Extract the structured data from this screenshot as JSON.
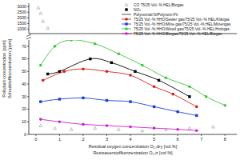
{
  "chart_data": [
    {
      "type": "scatter",
      "xlim": [
        -0.3,
        8.5
      ],
      "ylim": [
        600,
        3300
      ],
      "yticks": [
        1000,
        1500,
        2000,
        2500,
        3000
      ],
      "tick_labels": "y",
      "grid": false,
      "series": [
        {
          "color": "#9a9a9a",
          "marker": "triangle",
          "line_style": "none",
          "x": [
            0.1,
            0.2,
            0.3,
            0.5
          ],
          "values": [
            2900,
            2400,
            1700,
            1100
          ]
        }
      ]
    },
    {
      "type": "line",
      "xlim": [
        -0.3,
        8.5
      ],
      "ylim": [
        0,
        75
      ],
      "xticks": [
        0,
        1,
        2,
        3,
        4,
        5,
        6,
        7,
        8
      ],
      "yticks": [
        0,
        10,
        20,
        30,
        40,
        50,
        60,
        70
      ],
      "grid": false,
      "legend": "top-right",
      "y_label": [
        "Pollutant concentration [ppm]",
        "Schadstoffkonzentration [ppm]"
      ],
      "x_label": [
        "Residual oxygen concentration O₂,dry [vol.%]",
        "Restsauerstoffkonzentration O₂,tr [vol.%]"
      ],
      "fit_label": "Polynomial fit/Polynom-Fit",
      "series": [
        {
          "name": "CO 75/25 Vol.-% HEL/Biogas",
          "color": "#9a9a9a",
          "marker": "triangle",
          "line_style": "none",
          "x": [
            0.2,
            0.8,
            1.5,
            2.5,
            3.5,
            4.5,
            5.5,
            6.5,
            7.5
          ],
          "values": [
            7,
            5,
            4,
            5,
            4,
            3,
            4,
            5,
            6
          ]
        },
        {
          "name": "NOₓ",
          "color": "#000000",
          "marker": "square",
          "line_style": "solid",
          "x": [
            0.5,
            1.0,
            2.3,
            3.2,
            4.2,
            5.2,
            6.5
          ],
          "values": [
            48,
            50,
            60,
            57,
            50,
            43,
            30
          ]
        },
        {
          "name": "75/25 Vol.-% HHO/Sewer gas/75/25 Vol.-% HEL/Klärgas",
          "color": "#d42020",
          "marker": "circle",
          "line_style": "solid",
          "x": [
            0.3,
            1.2,
            2.0,
            3.0,
            4.0,
            5.0,
            5.8,
            6.8
          ],
          "values": [
            43,
            50,
            52,
            50,
            47,
            38,
            32,
            22
          ]
        },
        {
          "name": "75/25 Vol.-% HHO/Mine gas/75/25 Vol.-% HEL/Minengas",
          "color": "#1f3fd0",
          "marker": "square",
          "line_style": "solid",
          "x": [
            0.2,
            1.0,
            2.0,
            3.0,
            4.0,
            5.0,
            6.0,
            6.8
          ],
          "values": [
            26,
            28,
            29,
            27,
            26,
            22,
            18,
            15
          ]
        },
        {
          "name": "75/25 Vol.-% HHO/Wood gas/75/25 Vol.-% HEL/Holzgas",
          "color": "#3ec43e",
          "marker": "circle",
          "line_style": "solid",
          "x": [
            0.2,
            0.8,
            1.5,
            2.5,
            3.5,
            4.5,
            5.5,
            6.5,
            7.2,
            8.0
          ],
          "values": [
            55,
            70,
            75,
            72,
            64,
            55,
            45,
            38,
            30,
            23
          ]
        },
        {
          "name": "75/25 Vol.-% HHO/Biogas/75/25 Vol.-% HEL/Biogas",
          "color": "#d020d0",
          "marker": "circle",
          "line_style": "solid",
          "x": [
            0.2,
            1.0,
            2.0,
            3.0,
            4.0,
            5.0,
            6.0,
            6.8
          ],
          "values": [
            12,
            10,
            8,
            7,
            6,
            5,
            4,
            3
          ]
        }
      ]
    }
  ]
}
